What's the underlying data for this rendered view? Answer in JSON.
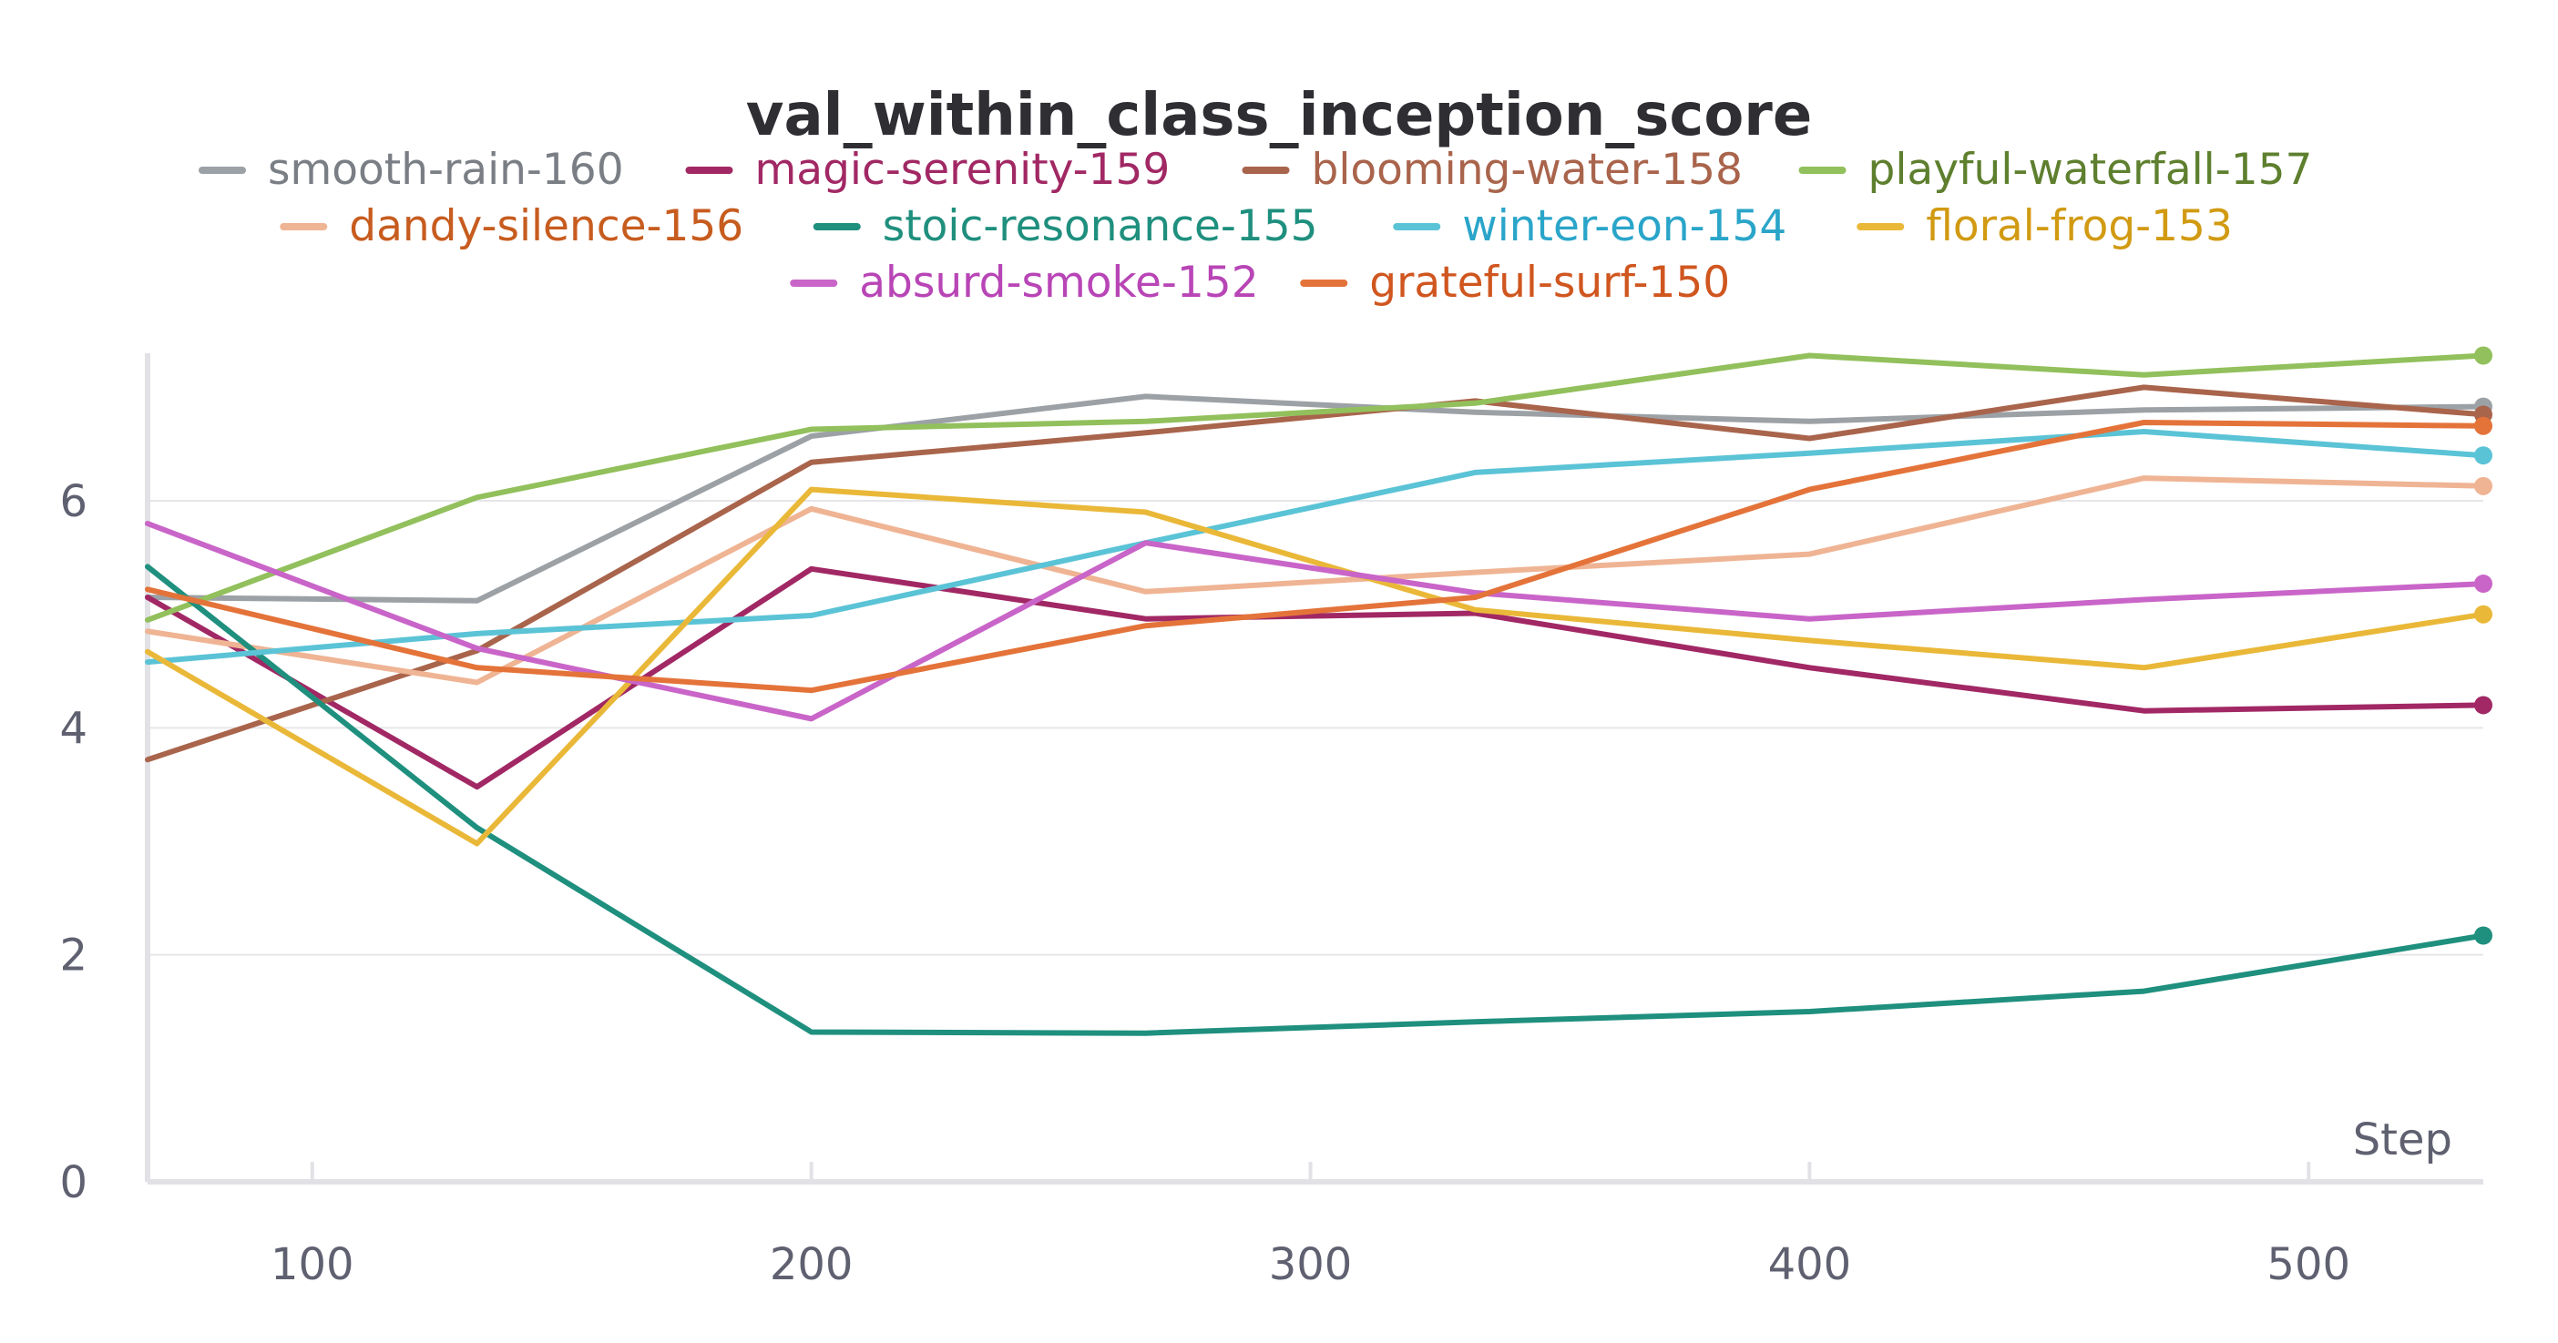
{
  "chart_data": {
    "type": "line",
    "title": "val_within_class_inception_score",
    "xlabel": "Step",
    "ylabel": "",
    "xlim": [
      67,
      535
    ],
    "ylim": [
      0,
      7.3
    ],
    "xticks": [
      100,
      200,
      300,
      400,
      500
    ],
    "yticks": [
      0,
      2,
      4,
      6
    ],
    "grid": "horizontal",
    "legend_position": "top-center",
    "x": [
      67,
      133,
      200,
      267,
      333,
      400,
      467,
      535
    ],
    "series": [
      {
        "name": "smooth-rain-160",
        "color": "#9ca1a6",
        "legend_text_color": "#7a7e85",
        "values": [
          5.15,
          5.12,
          6.57,
          6.92,
          6.78,
          6.7,
          6.8,
          6.83
        ]
      },
      {
        "name": "magic-serenity-159",
        "color": "#a12864",
        "legend_text_color": "#a12864",
        "values": [
          5.15,
          3.48,
          5.4,
          4.96,
          5.01,
          4.53,
          4.15,
          4.2
        ]
      },
      {
        "name": "blooming-water-158",
        "color": "#a9644c",
        "legend_text_color": "#a9644c",
        "values": [
          3.72,
          4.68,
          6.34,
          6.6,
          6.88,
          6.55,
          7.0,
          6.76
        ]
      },
      {
        "name": "playful-waterfall-157",
        "color": "#92c05c",
        "legend_text_color": "#5e7f2e",
        "values": [
          4.95,
          6.03,
          6.63,
          6.7,
          6.86,
          7.28,
          7.11,
          7.28
        ]
      },
      {
        "name": "dandy-silence-156",
        "color": "#efb494",
        "legend_text_color": "#c75c1f",
        "values": [
          4.85,
          4.4,
          5.93,
          5.2,
          5.37,
          5.53,
          6.2,
          6.13
        ]
      },
      {
        "name": "stoic-resonance-155",
        "color": "#1f8f7e",
        "legend_text_color": "#1f8f7e",
        "values": [
          5.42,
          3.12,
          1.32,
          1.31,
          1.41,
          1.5,
          1.68,
          2.17
        ]
      },
      {
        "name": "winter-eon-154",
        "color": "#5bc3d6",
        "legend_text_color": "#2aa5c9",
        "values": [
          4.58,
          4.83,
          4.99,
          5.63,
          6.25,
          6.42,
          6.61,
          6.4
        ]
      },
      {
        "name": "floral-frog-153",
        "color": "#eab838",
        "legend_text_color": "#d19a12",
        "values": [
          4.67,
          2.98,
          6.1,
          5.9,
          5.04,
          4.77,
          4.53,
          5.0
        ]
      },
      {
        "name": "absurd-smoke-152",
        "color": "#c965c8",
        "legend_text_color": "#b845b6",
        "values": [
          5.8,
          4.7,
          4.08,
          5.63,
          5.19,
          4.96,
          5.13,
          5.27
        ]
      },
      {
        "name": "grateful-surf-150",
        "color": "#e4733a",
        "legend_text_color": "#d0561f",
        "values": [
          5.22,
          4.53,
          4.33,
          4.9,
          5.15,
          6.1,
          6.69,
          6.66
        ]
      }
    ]
  }
}
